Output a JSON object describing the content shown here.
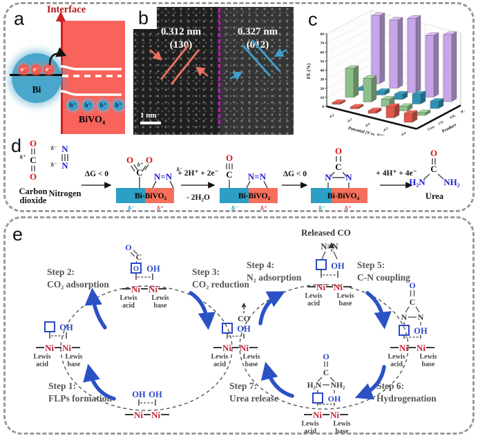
{
  "figure": {
    "panel_labels": {
      "a": "a",
      "b": "b",
      "c": "c",
      "d": "d",
      "e": "e"
    }
  },
  "panel_a": {
    "interface": "Interface",
    "bi": "Bi",
    "bivo4": "BiVO₄",
    "electron": "e⁻",
    "hole": "h⁺",
    "colors": {
      "bivo4_fill": "#f8635b",
      "bi_fill": "#4aa7cb",
      "electron_fill": "#ee5a50",
      "hole_fill": "#3ea0c8",
      "interface_red": "#c01414"
    }
  },
  "panel_b": {
    "left_spacing": "0.312 nm",
    "left_plane": "(130)",
    "right_spacing": "0.327 nm",
    "right_plane": "(012)",
    "scale_bar": "1 nm",
    "colors": {
      "left_lines": "#e8715f",
      "right_lines": "#3f9fc8",
      "divider": "#c613c6"
    }
  },
  "panel_c": {
    "chart_data": {
      "type": "bar",
      "title": "",
      "xlabel": "Potential (V vs. RHE)",
      "ylabel": "FE (%)",
      "zlabel": "Product",
      "ylim": [
        0,
        80
      ],
      "yticks": [
        0,
        10,
        20,
        30,
        40,
        50,
        60,
        70,
        80
      ],
      "categories": [
        "-0.2",
        "-0.3",
        "-0.4",
        "-0.5",
        "-0.6"
      ],
      "series": [
        {
          "name": "Urea",
          "color": "#e2574b",
          "values": [
            2,
            2,
            3,
            12.5,
            10
          ]
        },
        {
          "name": "CO",
          "color": "#8ec08c",
          "values": [
            32,
            26,
            8,
            5,
            3
          ]
        },
        {
          "name": "NH₃",
          "color": "#2d93b5",
          "values": [
            3,
            4,
            6,
            11,
            8
          ]
        },
        {
          "name": "H₂",
          "color": "#c7a5e8",
          "values": [
            75,
            75,
            82,
            68,
            74
          ]
        }
      ],
      "legend_position": "none",
      "grid": true
    }
  },
  "panel_d": {
    "co2_o": "O",
    "co2_c": "C",
    "delta_plus": "δ⁺",
    "delta_minus": "δ⁻",
    "co2_name_l1": "Carbon",
    "co2_name_l2": "dioxide",
    "n": "N",
    "n2_name": "Nitrogen",
    "dg": "ΔG < 0",
    "h2e2": "+ 2H⁺ + 2e⁻",
    "minus_h2o": "- 2H₂O",
    "h4e4": "+ 4H⁺ + 4e⁻",
    "catalyst": "Bi-BiVO₄",
    "nn": "N=N",
    "o": "O",
    "c": "C",
    "urea_h2n": "H₂N",
    "urea_nh2": "NH₂",
    "urea_name": "Urea",
    "colors": {
      "teal": "#2d9ec4",
      "salmon": "#f4705c",
      "o_red": "#dd1111",
      "n_blue": "#2121cc"
    }
  },
  "panel_e": {
    "released_co": "Released CO",
    "co": "CO",
    "nn": "N≡N",
    "ni": "Ni",
    "oh": "OH",
    "o": "O",
    "c": "C",
    "n": "N",
    "h2n": "H₂N",
    "nh2": "NH₂",
    "lewis": "Lewis",
    "acid": "acid",
    "base": "base",
    "steps": [
      {
        "title": "Step 1:",
        "desc": "FLPs formation"
      },
      {
        "title": "Step 2:",
        "desc": "CO₂ adsorption"
      },
      {
        "title": "Step 3:",
        "desc": "CO₂ reduction"
      },
      {
        "title": "Step 4:",
        "desc": "N₂ adsorption"
      },
      {
        "title": "Step 5:",
        "desc": "C-N coupling"
      },
      {
        "title": "Step 6:",
        "desc": "Hydrogenation"
      },
      {
        "title": "Step 7:",
        "desc": "Urea release"
      }
    ],
    "colors": {
      "structure_blue": "#2847c8",
      "ni_red": "#c81f35",
      "arrow_blue": "#2b52c4",
      "text_gray": "#555555"
    }
  }
}
